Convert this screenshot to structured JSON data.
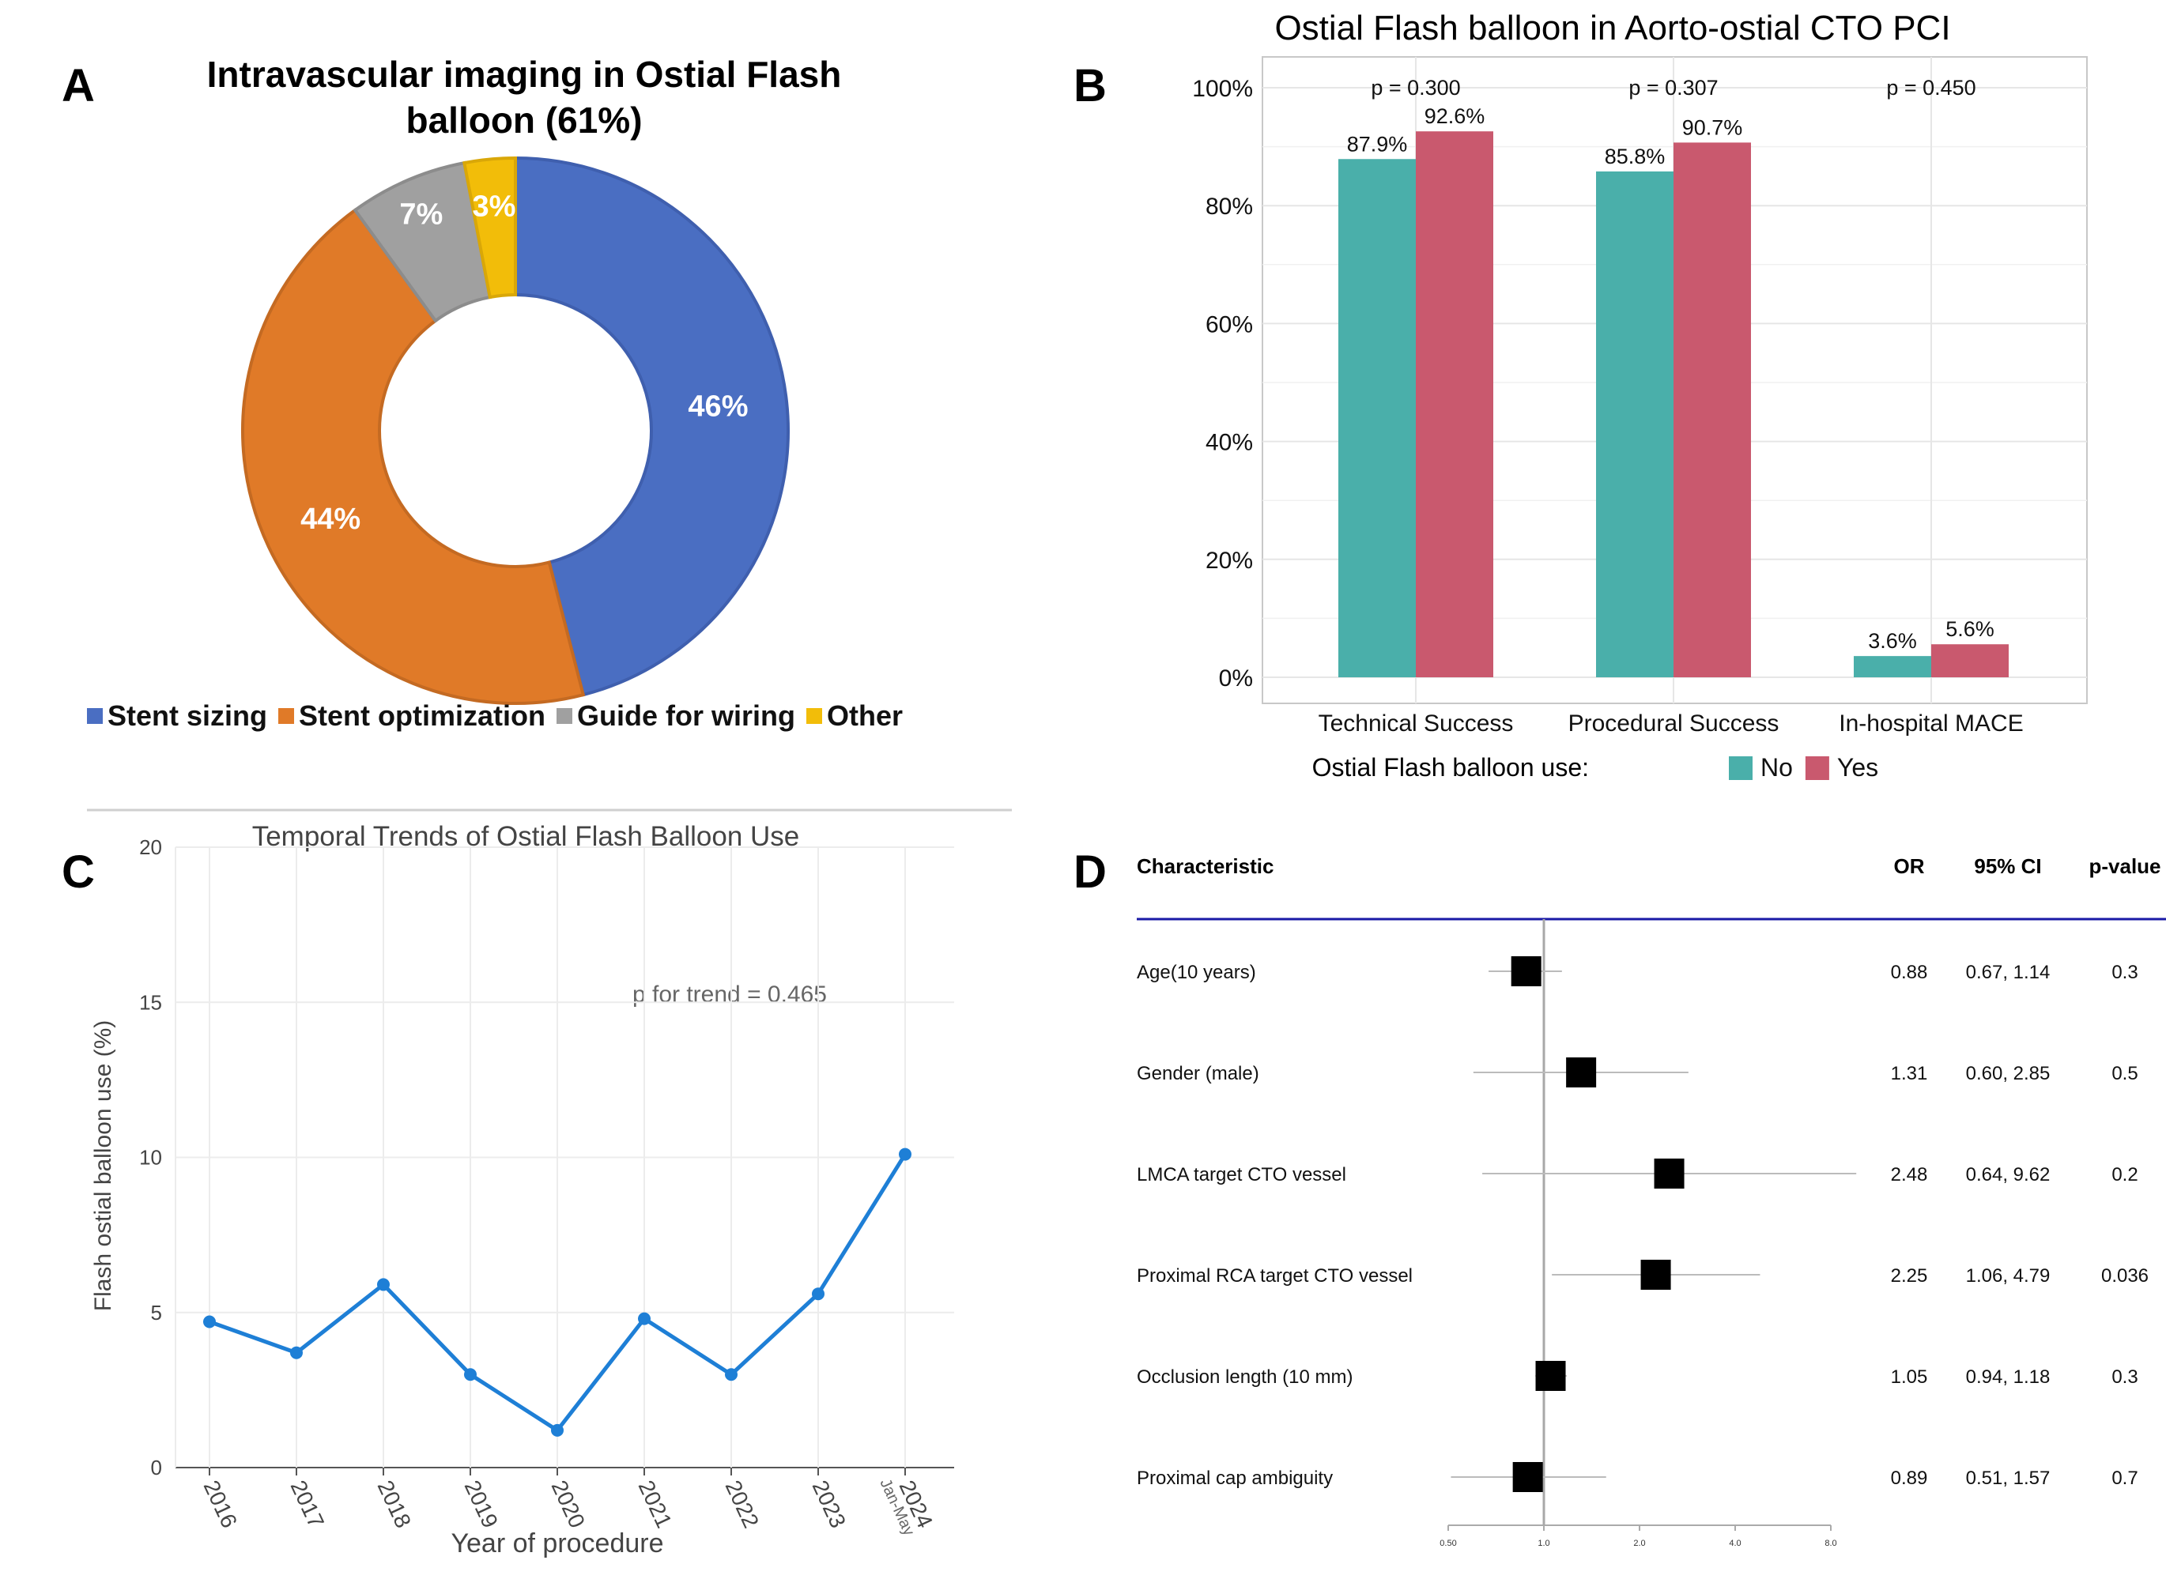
{
  "panels": {
    "a": "A",
    "b": "B",
    "c": "C",
    "d": "D"
  },
  "chart_data": [
    {
      "type": "pie",
      "donut": true,
      "title_line1": "Intravascular imaging in Ostial Flash",
      "title_line2": "balloon (61%)",
      "slices": [
        {
          "label": "Stent sizing",
          "value": 46,
          "display": "46%",
          "color": "#4a6ec2"
        },
        {
          "label": "Stent optimization",
          "value": 44,
          "display": "44%",
          "color": "#e07a28"
        },
        {
          "label": "Guide for wiring",
          "value": 7,
          "display": "7%",
          "color": "#a0a0a0"
        },
        {
          "label": "Other",
          "value": 3,
          "display": "3%",
          "color": "#f2bd09"
        }
      ],
      "legend_position": "bottom"
    },
    {
      "type": "bar",
      "title": "Ostial Flash balloon in Aorto-ostial CTO PCI",
      "categories": [
        "Technical Success",
        "Procedural Success",
        "In-hospital MACE"
      ],
      "series": [
        {
          "name": "No",
          "values": [
            87.9,
            85.8,
            3.6
          ],
          "labels": [
            "87.9%",
            "85.8%",
            "3.6%"
          ],
          "color": "#4aafaa"
        },
        {
          "name": "Yes",
          "values": [
            92.6,
            90.7,
            5.6
          ],
          "labels": [
            "92.6%",
            "90.7%",
            "5.6%"
          ],
          "color": "#c9596e"
        }
      ],
      "pvalues": [
        "p = 0.300",
        "p = 0.307",
        "p = 0.450"
      ],
      "ylim": [
        0,
        100
      ],
      "yticks": [
        0,
        20,
        40,
        60,
        80,
        100
      ],
      "ytick_labels": [
        "0%",
        "20%",
        "40%",
        "60%",
        "80%",
        "100%"
      ],
      "legend_title": "Ostial Flash balloon use:",
      "legend_position": "bottom"
    },
    {
      "type": "line",
      "title": "Temporal Trends of Ostial Flash Balloon Use",
      "x": [
        "2016",
        "2017",
        "2018",
        "2019",
        "2020",
        "2021",
        "2022",
        "2023",
        "2024"
      ],
      "x_sublabel_last": "Jan-May",
      "values": [
        4.7,
        3.7,
        5.9,
        3.0,
        1.2,
        4.8,
        3.0,
        5.6,
        10.1
      ],
      "ylim": [
        0,
        20
      ],
      "yticks": [
        0,
        5,
        10,
        15,
        20
      ],
      "xlabel": "Year of procedure",
      "ylabel": "Flash ostial balloon use (%)",
      "annotation": "p for trend = 0.465",
      "color": "#1e7fd6"
    },
    {
      "type": "forest",
      "headers": {
        "characteristic": "Characteristic",
        "or": "OR",
        "ci": "95% CI",
        "p": "p-value"
      },
      "rows": [
        {
          "name": "Age(10 years)",
          "or": 0.88,
          "lo": 0.67,
          "hi": 1.14,
          "or_text": "0.88",
          "ci_text": "0.67, 1.14",
          "p_text": "0.3"
        },
        {
          "name": "Gender (male)",
          "or": 1.31,
          "lo": 0.6,
          "hi": 2.85,
          "or_text": "1.31",
          "ci_text": "0.60, 2.85",
          "p_text": "0.5"
        },
        {
          "name": "LMCA target CTO vessel",
          "or": 2.48,
          "lo": 0.64,
          "hi": 9.62,
          "or_text": "2.48",
          "ci_text": "0.64, 9.62",
          "p_text": "0.2"
        },
        {
          "name": "Proximal RCA target CTO vessel",
          "or": 2.25,
          "lo": 1.06,
          "hi": 4.79,
          "or_text": "2.25",
          "ci_text": "1.06, 4.79",
          "p_text": "0.036"
        },
        {
          "name": "Occlusion length (10 mm)",
          "or": 1.05,
          "lo": 0.94,
          "hi": 1.18,
          "or_text": "1.05",
          "ci_text": "0.94, 1.18",
          "p_text": "0.3"
        },
        {
          "name": "Proximal cap ambiguity",
          "or": 0.89,
          "lo": 0.51,
          "hi": 1.57,
          "or_text": "0.89",
          "ci_text": "0.51, 1.57",
          "p_text": "0.7"
        }
      ],
      "xticks": [
        0.5,
        1.0,
        2.0,
        4.0,
        8.0
      ],
      "xtick_labels": [
        "0.50",
        "1.0",
        "2.0",
        "4.0",
        "8.0"
      ],
      "xscale": "log",
      "reference": 1.0
    }
  ]
}
